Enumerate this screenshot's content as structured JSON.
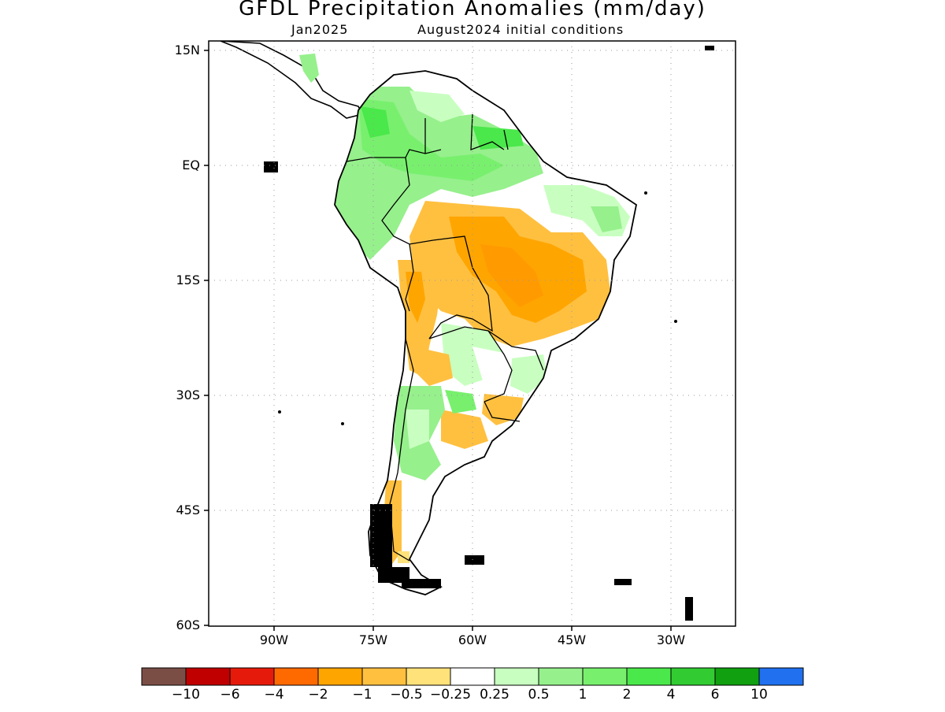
{
  "title": "GFDL Precipitation Anomalies (mm/day)",
  "subtitle_left": "Jan2025",
  "subtitle_right": "August2024 initial conditions",
  "lat_labels": [
    "15N",
    "EQ",
    "15S",
    "30S",
    "45S",
    "60S"
  ],
  "lon_labels": [
    "90W",
    "75W",
    "60W",
    "45W",
    "30W"
  ],
  "colorbar": {
    "labels": [
      "-10",
      "-6",
      "-4",
      "-2",
      "-1",
      "-0.5",
      "-0.25",
      "0.25",
      "0.5",
      "1",
      "2",
      "4",
      "6",
      "10"
    ],
    "colors": [
      "#7a4e45",
      "#c00000",
      "#e61a0a",
      "#ff6a00",
      "#ffa500",
      "#ffc040",
      "#ffe27a",
      "#ffffff",
      "#c8ffc0",
      "#96f08c",
      "#78f06e",
      "#4ae84a",
      "#32cc32",
      "#10a010",
      "#2070f0"
    ]
  },
  "chart_data": {
    "type": "heatmap",
    "title": "GFDL Precipitation Anomalies (mm/day)",
    "subtitle": "Jan2025  August2024 initial conditions",
    "region": "South America",
    "lat_range": [
      "60S",
      "15N"
    ],
    "lon_range": [
      "100W",
      "20W"
    ],
    "levels": [
      -10,
      -6,
      -4,
      -2,
      -1,
      -0.5,
      -0.25,
      0.25,
      0.5,
      1,
      2,
      4,
      6,
      10
    ],
    "grid": true
  }
}
